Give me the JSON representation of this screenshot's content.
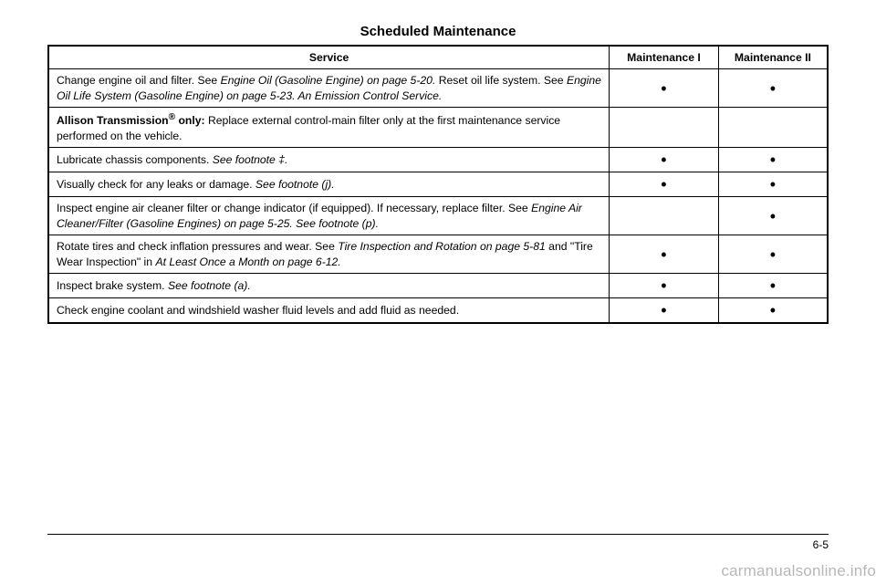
{
  "title": "Scheduled Maintenance",
  "columns": [
    "Service",
    "Maintenance I",
    "Maintenance II"
  ],
  "rows": [
    {
      "html": "Change engine oil and filter. See <span class='italic'>Engine Oil (Gasoline Engine) on page 5-20.</span> Reset oil life system. See <span class='italic'>Engine Oil Life System (Gasoline Engine) on page 5-23. An Emission Control Service.</span>",
      "m1": "•",
      "m2": "•"
    },
    {
      "html": "<b>Allison Transmission<sup>®</sup> only:</b> Replace external control-main filter only at the first maintenance service performed on the vehicle.",
      "m1": "",
      "m2": ""
    },
    {
      "html": "Lubricate chassis components. <span class='italic'>See footnote ‡.</span>",
      "m1": "•",
      "m2": "•"
    },
    {
      "html": "Visually check for any leaks or damage. <span class='italic'>See footnote (j).</span>",
      "m1": "•",
      "m2": "•"
    },
    {
      "html": "Inspect engine air cleaner filter or change indicator (if equipped). If necessary, replace filter. See <span class='italic'>Engine Air Cleaner/Filter (Gasoline Engines) on page 5-25. See footnote (p).</span>",
      "m1": "",
      "m2": "•"
    },
    {
      "html": "Rotate tires and check inflation pressures and wear. See <span class='italic'>Tire Inspection and Rotation on page 5-81</span> and \"Tire Wear Inspection\" in <span class='italic'>At Least Once a Month on page 6-12.</span>",
      "m1": "•",
      "m2": "•"
    },
    {
      "html": "Inspect brake system. <span class='italic'>See footnote (a).</span>",
      "m1": "•",
      "m2": "•"
    },
    {
      "html": "Check engine coolant and windshield washer fluid levels and add fluid as needed.",
      "m1": "•",
      "m2": "•"
    }
  ],
  "pageNumber": "6-5",
  "watermark": "carmanualsonline.info"
}
